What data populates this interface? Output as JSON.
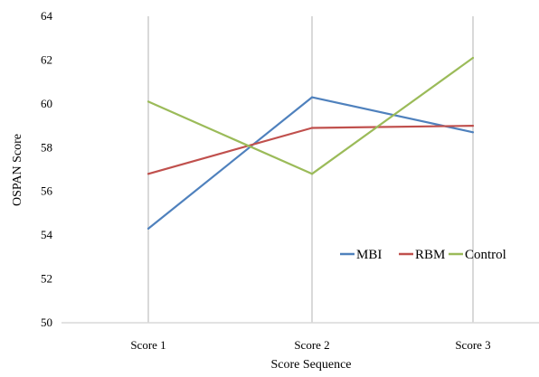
{
  "chart_data": {
    "type": "line",
    "title": "",
    "xlabel": "Score Sequence",
    "ylabel": "OSPAN Score",
    "categories": [
      "Score 1",
      "Score 2",
      "Score 3"
    ],
    "ylim": [
      50,
      64
    ],
    "y_ticks": [
      50,
      52,
      54,
      56,
      58,
      60,
      62,
      64
    ],
    "grid": "vertical lines at categories",
    "legend_position": "right",
    "series": [
      {
        "name": "MBI",
        "color": "#4f81bd",
        "values": [
          54.3,
          60.3,
          58.7
        ]
      },
      {
        "name": "RBM",
        "color": "#c0504d",
        "values": [
          56.8,
          58.9,
          59.0
        ]
      },
      {
        "name": "Control",
        "color": "#9bbb59",
        "values": [
          60.1,
          56.8,
          62.1
        ]
      }
    ]
  }
}
